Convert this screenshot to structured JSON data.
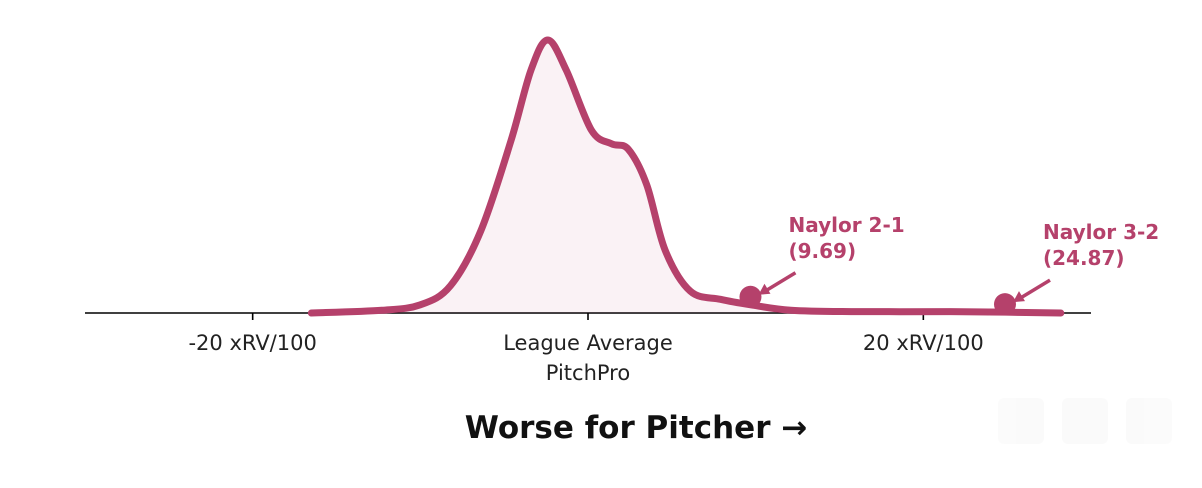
{
  "chart_data": {
    "type": "density",
    "xlabel": "Worse for Pitcher →",
    "x": [
      -16.5,
      -12.3,
      -10,
      -8.2,
      -6.4,
      -4.6,
      -3.4,
      -2.4,
      -1.3,
      0.2,
      1.4,
      2.4,
      3.5,
      4.6,
      6.1,
      7.9,
      9.7,
      12.1,
      15.7,
      21.6,
      24.9,
      28.2
    ],
    "y": [
      0,
      0.01,
      0.03,
      0.1,
      0.3,
      0.63,
      0.89,
      1.0,
      0.89,
      0.67,
      0.62,
      0.6,
      0.47,
      0.23,
      0.08,
      0.05,
      0.03,
      0.01,
      0.005,
      0.005,
      0.003,
      0
    ],
    "color": "#b5416b",
    "xlim": [
      -30,
      30
    ],
    "ylim": [
      0,
      1
    ],
    "xticks": [
      {
        "value": -20,
        "label": "-20 xRV/100"
      },
      {
        "value": 0,
        "label": "League Average\nPitchPro"
      },
      {
        "value": 20,
        "label": "20 xRV/100"
      }
    ],
    "points": {
      "names": [
        "Naylor 2-1",
        "Naylor 3-2"
      ],
      "x": [
        9.69,
        24.87
      ],
      "x_labels": [
        "(9.69)",
        "(24.87)"
      ]
    }
  }
}
